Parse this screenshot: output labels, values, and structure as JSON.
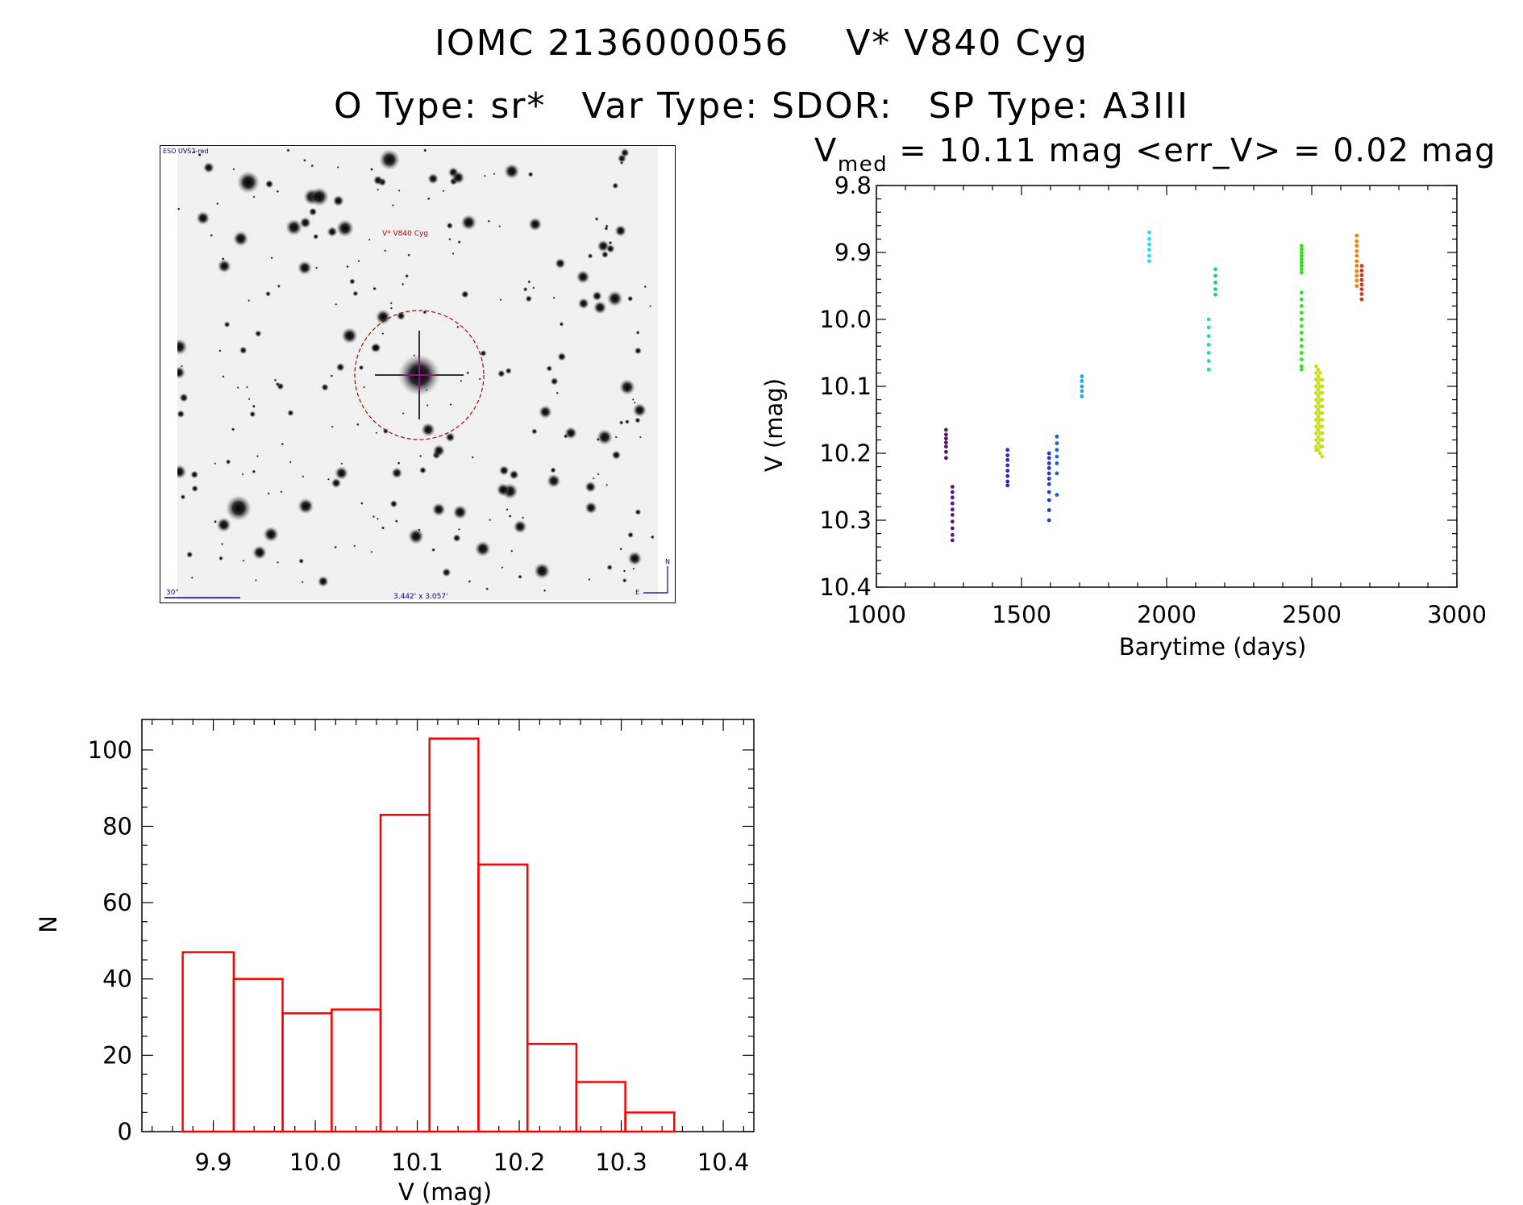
{
  "header": {
    "line1_id": "IOMC 2136000056",
    "line1_name": "V* V840 Cyg",
    "line2_otype": "O Type: sr*",
    "line2_vartype": "Var Type: SDOR:",
    "line2_sptype": "SP Type: A3III"
  },
  "finder": {
    "survey_label": "ESO UVS2-red",
    "target_label": "V* V840 Cyg",
    "scale_label": "30\"",
    "fov_label": "3.442' x 3.057'",
    "north_label": "N",
    "east_label": "E",
    "colors": {
      "marker": "#b00000",
      "crosshair": "#c000c0",
      "annotation": "#000080"
    }
  },
  "chart_data": [
    {
      "type": "scatter",
      "title_v": "V",
      "title_sub": "med",
      "title_rest": "= 10.11 mag <err_V> = 0.02 mag",
      "xlabel": "Barytime (days)",
      "ylabel": "V (mag)",
      "xlim": [
        1000,
        3000
      ],
      "ylim": [
        10.4,
        9.8
      ],
      "y_inverted": true,
      "x_ticks": [
        1000,
        1500,
        2000,
        2500,
        3000
      ],
      "x_tick_labels": [
        "1000",
        "1500",
        "2000",
        "2500",
        "3000"
      ],
      "y_ticks": [
        9.8,
        9.9,
        10.0,
        10.1,
        10.2,
        10.3,
        10.4
      ],
      "y_tick_labels": [
        "9.8",
        "9.9",
        "10.0",
        "10.1",
        "10.2",
        "10.3",
        "10.4"
      ],
      "grid": false,
      "groups": [
        {
          "color": "#5a1470",
          "points": [
            [
              1240,
              10.165
            ],
            [
              1240,
              10.172
            ],
            [
              1240,
              10.178
            ],
            [
              1240,
              10.184
            ],
            [
              1240,
              10.19
            ],
            [
              1240,
              10.198
            ],
            [
              1240,
              10.207
            ]
          ]
        },
        {
          "color": "#5a1490",
          "points": [
            [
              1262,
              10.25
            ],
            [
              1262,
              10.258
            ],
            [
              1262,
              10.266
            ],
            [
              1262,
              10.275
            ],
            [
              1262,
              10.284
            ],
            [
              1262,
              10.292
            ],
            [
              1262,
              10.302
            ],
            [
              1262,
              10.312
            ],
            [
              1262,
              10.322
            ],
            [
              1262,
              10.33
            ]
          ]
        },
        {
          "color": "#4020a8",
          "points": [
            [
              1452,
              10.195
            ],
            [
              1452,
              10.203
            ],
            [
              1452,
              10.21
            ],
            [
              1452,
              10.218
            ],
            [
              1452,
              10.226
            ],
            [
              1452,
              10.234
            ],
            [
              1452,
              10.242
            ],
            [
              1452,
              10.248
            ]
          ]
        },
        {
          "color": "#2038d0",
          "points": [
            [
              1595,
              10.2
            ],
            [
              1595,
              10.207
            ],
            [
              1595,
              10.215
            ],
            [
              1595,
              10.222
            ],
            [
              1595,
              10.23
            ],
            [
              1595,
              10.238
            ],
            [
              1595,
              10.246
            ],
            [
              1595,
              10.258
            ],
            [
              1595,
              10.27
            ],
            [
              1595,
              10.285
            ],
            [
              1595,
              10.3
            ]
          ]
        },
        {
          "color": "#1860e0",
          "points": [
            [
              1622,
              10.175
            ],
            [
              1622,
              10.185
            ],
            [
              1622,
              10.195
            ],
            [
              1622,
              10.205
            ],
            [
              1622,
              10.215
            ],
            [
              1622,
              10.23
            ],
            [
              1622,
              10.262
            ]
          ]
        },
        {
          "color": "#20a8e8",
          "points": [
            [
              1708,
              10.085
            ],
            [
              1708,
              10.092
            ],
            [
              1708,
              10.1
            ],
            [
              1708,
              10.107
            ],
            [
              1708,
              10.115
            ]
          ]
        },
        {
          "color": "#20e0e8",
          "points": [
            [
              1940,
              9.87
            ],
            [
              1940,
              9.88
            ],
            [
              1940,
              9.888
            ],
            [
              1940,
              9.896
            ],
            [
              1940,
              9.905
            ],
            [
              1940,
              9.913
            ]
          ]
        },
        {
          "color": "#20d8b8",
          "points": [
            [
              2145,
              10.0
            ],
            [
              2145,
              10.012
            ],
            [
              2145,
              10.025
            ],
            [
              2145,
              10.038
            ],
            [
              2145,
              10.05
            ],
            [
              2145,
              10.062
            ],
            [
              2145,
              10.075
            ]
          ]
        },
        {
          "color": "#20d070",
          "points": [
            [
              2168,
              9.925
            ],
            [
              2168,
              9.935
            ],
            [
              2168,
              9.945
            ],
            [
              2168,
              9.955
            ],
            [
              2168,
              9.963
            ]
          ]
        },
        {
          "color": "#30e020",
          "points": [
            [
              2465,
              9.89
            ],
            [
              2465,
              9.895
            ],
            [
              2465,
              9.9
            ],
            [
              2465,
              9.905
            ],
            [
              2465,
              9.91
            ],
            [
              2465,
              9.915
            ],
            [
              2465,
              9.92
            ],
            [
              2465,
              9.925
            ],
            [
              2465,
              9.93
            ],
            [
              2465,
              9.96
            ],
            [
              2465,
              9.97
            ],
            [
              2465,
              9.98
            ],
            [
              2465,
              9.99
            ],
            [
              2465,
              10.0
            ],
            [
              2465,
              10.01
            ],
            [
              2465,
              10.02
            ],
            [
              2465,
              10.03
            ],
            [
              2465,
              10.04
            ],
            [
              2465,
              10.05
            ],
            [
              2465,
              10.06
            ],
            [
              2465,
              10.07
            ],
            [
              2465,
              10.075
            ]
          ]
        },
        {
          "color": "#c8e020",
          "points": [
            [
              2515,
              10.07
            ],
            [
              2515,
              10.08
            ],
            [
              2515,
              10.09
            ],
            [
              2515,
              10.1
            ],
            [
              2515,
              10.11
            ],
            [
              2515,
              10.12
            ],
            [
              2515,
              10.13
            ],
            [
              2515,
              10.14
            ],
            [
              2515,
              10.15
            ],
            [
              2515,
              10.16
            ],
            [
              2515,
              10.17
            ],
            [
              2515,
              10.18
            ],
            [
              2515,
              10.19
            ],
            [
              2515,
              10.195
            ],
            [
              2522,
              10.075
            ],
            [
              2522,
              10.085
            ],
            [
              2522,
              10.095
            ],
            [
              2522,
              10.105
            ],
            [
              2522,
              10.115
            ],
            [
              2522,
              10.125
            ],
            [
              2522,
              10.135
            ],
            [
              2522,
              10.145
            ],
            [
              2522,
              10.155
            ],
            [
              2522,
              10.165
            ],
            [
              2522,
              10.175
            ],
            [
              2522,
              10.185
            ],
            [
              2522,
              10.195
            ],
            [
              2529,
              10.08
            ],
            [
              2529,
              10.09
            ],
            [
              2529,
              10.1
            ],
            [
              2529,
              10.11
            ],
            [
              2529,
              10.12
            ],
            [
              2529,
              10.13
            ],
            [
              2529,
              10.14
            ],
            [
              2529,
              10.15
            ],
            [
              2529,
              10.16
            ],
            [
              2529,
              10.17
            ],
            [
              2529,
              10.18
            ],
            [
              2529,
              10.19
            ],
            [
              2529,
              10.2
            ],
            [
              2536,
              10.09
            ],
            [
              2536,
              10.1
            ],
            [
              2536,
              10.11
            ],
            [
              2536,
              10.12
            ],
            [
              2536,
              10.13
            ],
            [
              2536,
              10.14
            ],
            [
              2536,
              10.15
            ],
            [
              2536,
              10.16
            ],
            [
              2536,
              10.17
            ],
            [
              2536,
              10.18
            ],
            [
              2536,
              10.19
            ],
            [
              2536,
              10.205
            ]
          ]
        },
        {
          "color": "#f08010",
          "points": [
            [
              2655,
              9.875
            ],
            [
              2655,
              9.883
            ],
            [
              2655,
              9.89
            ],
            [
              2655,
              9.898
            ],
            [
              2655,
              9.905
            ],
            [
              2655,
              9.913
            ],
            [
              2655,
              9.92
            ],
            [
              2655,
              9.928
            ],
            [
              2655,
              9.935
            ],
            [
              2655,
              9.942
            ],
            [
              2655,
              9.95
            ]
          ]
        },
        {
          "color": "#e03018",
          "points": [
            [
              2672,
              9.92
            ],
            [
              2672,
              9.927
            ],
            [
              2672,
              9.934
            ],
            [
              2672,
              9.941
            ],
            [
              2672,
              9.948
            ],
            [
              2672,
              9.955
            ],
            [
              2672,
              9.962
            ],
            [
              2672,
              9.97
            ]
          ]
        }
      ]
    },
    {
      "type": "bar",
      "subtype": "histogram",
      "xlabel": "V (mag)",
      "ylabel": "N",
      "xlim": [
        9.83,
        10.43
      ],
      "ylim": [
        0,
        108
      ],
      "x_ticks": [
        9.9,
        10.0,
        10.1,
        10.2,
        10.3,
        10.4
      ],
      "x_tick_labels": [
        "9.9",
        "10.0",
        "10.1",
        "10.2",
        "10.3",
        "10.4"
      ],
      "y_ticks": [
        0,
        20,
        40,
        60,
        80,
        100
      ],
      "y_tick_labels": [
        "0",
        "20",
        "40",
        "60",
        "80",
        "100"
      ],
      "bin_edges": [
        9.87,
        9.92,
        9.968,
        10.016,
        10.064,
        10.112,
        10.16,
        10.208,
        10.256,
        10.304,
        10.352
      ],
      "counts": [
        47,
        40,
        31,
        32,
        83,
        103,
        70,
        23,
        13,
        5
      ],
      "color": "#ff0000"
    }
  ]
}
